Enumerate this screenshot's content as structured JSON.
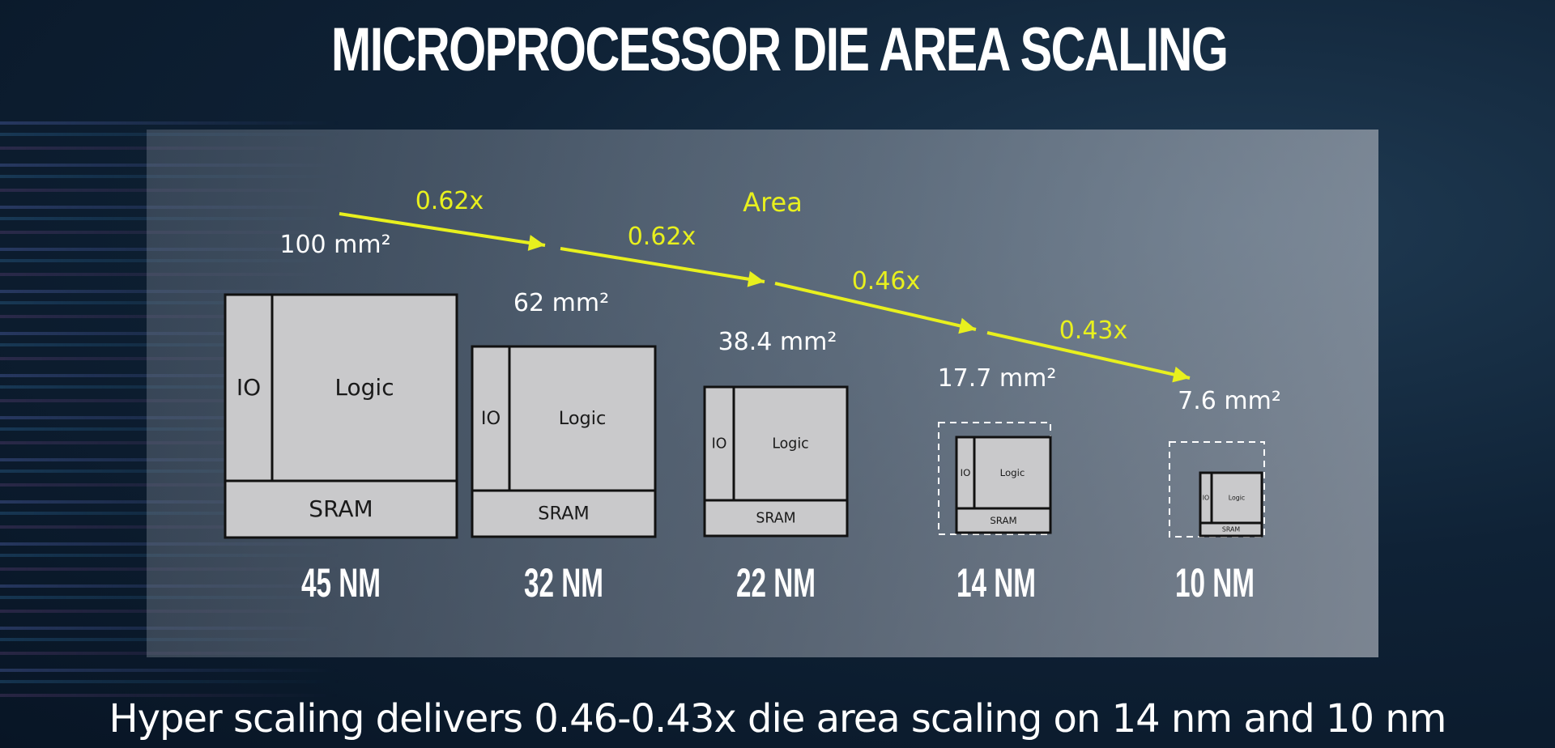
{
  "title": "MICROPROCESSOR DIE AREA SCALING",
  "area_heading": "Area",
  "nodes": [
    {
      "node": "45 NM",
      "area": "100 mm²",
      "io": "IO",
      "logic": "Logic",
      "sram": "SRAM",
      "dashed": false
    },
    {
      "node": "32 NM",
      "area": "62 mm²",
      "io": "IO",
      "logic": "Logic",
      "sram": "SRAM",
      "dashed": false
    },
    {
      "node": "22 NM",
      "area": "38.4 mm²",
      "io": "IO",
      "logic": "Logic",
      "sram": "SRAM",
      "dashed": false
    },
    {
      "node": "14 NM",
      "area": "17.7 mm²",
      "io": "IO",
      "logic": "Logic",
      "sram": "SRAM",
      "dashed": true
    },
    {
      "node": "10 NM",
      "area": "7.6 mm²",
      "io": "IO",
      "logic": "Logic",
      "sram": "SRAM",
      "dashed": true
    }
  ],
  "scaling_factors": [
    "0.62x",
    "0.62x",
    "0.46x",
    "0.43x"
  ],
  "footer": "Hyper scaling delivers 0.46-0.43x die area scaling on 14 nm and 10 nm",
  "colors": {
    "arrow": "#e8f01e",
    "die_fill": "#c9c9cb",
    "title": "#ffffff"
  }
}
